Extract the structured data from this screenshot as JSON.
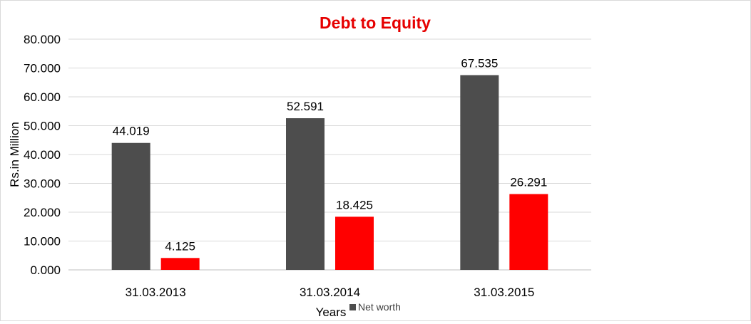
{
  "chart_data": {
    "type": "bar",
    "title": "Debt to Equity",
    "xlabel": "Years",
    "ylabel": "Rs.in Million",
    "categories": [
      "31.03.2013",
      "31.03.2014",
      "31.03.2015"
    ],
    "series": [
      {
        "values": [
          44.019,
          52.591,
          67.535
        ],
        "labels": [
          "44.019",
          "52.591",
          "67.535"
        ],
        "color": "#4d4d4d"
      },
      {
        "name": "Net worth",
        "values": [
          4.125,
          18.425,
          26.291
        ],
        "labels": [
          "4.125",
          "18.425",
          "26.291"
        ],
        "color": "#ff0000"
      }
    ],
    "ylim": [
      0,
      80
    ],
    "yticks": [
      "0.000",
      "10.000",
      "20.000",
      "30.000",
      "40.000",
      "50.000",
      "60.000",
      "70.000",
      "80.000"
    ],
    "grid": true,
    "legend": "bottom",
    "title_color": "#e60000"
  }
}
